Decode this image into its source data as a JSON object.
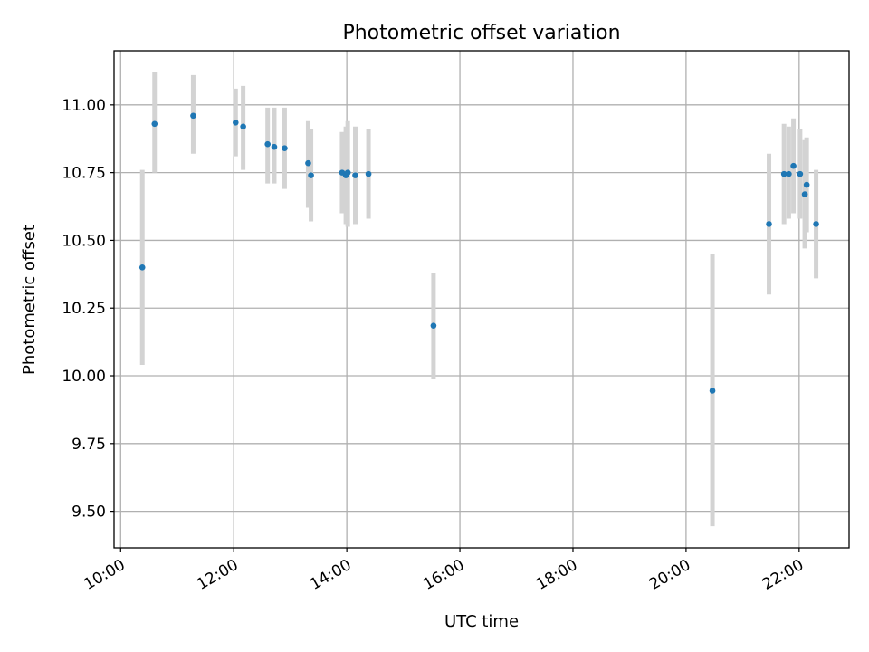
{
  "chart_data": {
    "type": "scatter",
    "title": "Photometric offset variation",
    "xlabel": "UTC time",
    "ylabel": "Photometric offset",
    "xlim": [
      "09:53",
      "22:53"
    ],
    "ylim": [
      9.365,
      11.2
    ],
    "x_ticks": [
      "10:00",
      "12:00",
      "14:00",
      "16:00",
      "18:00",
      "20:00",
      "22:00"
    ],
    "y_ticks": [
      "9.50",
      "9.75",
      "10.00",
      "10.25",
      "10.50",
      "10.75",
      "11.00"
    ],
    "grid": true,
    "colors": {
      "marker": "#1f77b4",
      "errorbar": "#d3d3d3"
    },
    "points": [
      {
        "x": "10:23",
        "y": 10.4,
        "yerr": [
          10.04,
          10.76
        ]
      },
      {
        "x": "10:36",
        "y": 10.93,
        "yerr": [
          10.75,
          11.12
        ]
      },
      {
        "x": "11:17",
        "y": 10.96,
        "yerr": [
          10.82,
          11.11
        ]
      },
      {
        "x": "12:02",
        "y": 10.935,
        "yerr": [
          10.81,
          11.06
        ]
      },
      {
        "x": "12:10",
        "y": 10.92,
        "yerr": [
          10.76,
          11.07
        ]
      },
      {
        "x": "12:36",
        "y": 10.855,
        "yerr": [
          10.71,
          10.99
        ]
      },
      {
        "x": "12:43",
        "y": 10.845,
        "yerr": [
          10.71,
          10.99
        ]
      },
      {
        "x": "12:54",
        "y": 10.84,
        "yerr": [
          10.69,
          10.99
        ]
      },
      {
        "x": "13:19",
        "y": 10.785,
        "yerr": [
          10.62,
          10.94
        ]
      },
      {
        "x": "13:22",
        "y": 10.74,
        "yerr": [
          10.57,
          10.91
        ]
      },
      {
        "x": "13:55",
        "y": 10.75,
        "yerr": [
          10.6,
          10.9
        ]
      },
      {
        "x": "13:59",
        "y": 10.74,
        "yerr": [
          10.56,
          10.92
        ]
      },
      {
        "x": "14:01",
        "y": 10.75,
        "yerr": [
          10.55,
          10.94
        ]
      },
      {
        "x": "14:09",
        "y": 10.74,
        "yerr": [
          10.56,
          10.92
        ]
      },
      {
        "x": "14:23",
        "y": 10.745,
        "yerr": [
          10.58,
          10.91
        ]
      },
      {
        "x": "15:32",
        "y": 10.185,
        "yerr": [
          9.99,
          10.38
        ]
      },
      {
        "x": "20:28",
        "y": 9.945,
        "yerr": [
          9.445,
          10.45
        ]
      },
      {
        "x": "21:28",
        "y": 10.56,
        "yerr": [
          10.3,
          10.82
        ]
      },
      {
        "x": "21:44",
        "y": 10.745,
        "yerr": [
          10.56,
          10.93
        ]
      },
      {
        "x": "21:49",
        "y": 10.745,
        "yerr": [
          10.58,
          10.92
        ]
      },
      {
        "x": "21:54",
        "y": 10.775,
        "yerr": [
          10.6,
          10.95
        ]
      },
      {
        "x": "22:01",
        "y": 10.745,
        "yerr": [
          10.58,
          10.91
        ]
      },
      {
        "x": "22:06",
        "y": 10.67,
        "yerr": [
          10.47,
          10.87
        ]
      },
      {
        "x": "22:08",
        "y": 10.705,
        "yerr": [
          10.53,
          10.88
        ]
      },
      {
        "x": "22:18",
        "y": 10.56,
        "yerr": [
          10.36,
          10.76
        ]
      }
    ]
  }
}
